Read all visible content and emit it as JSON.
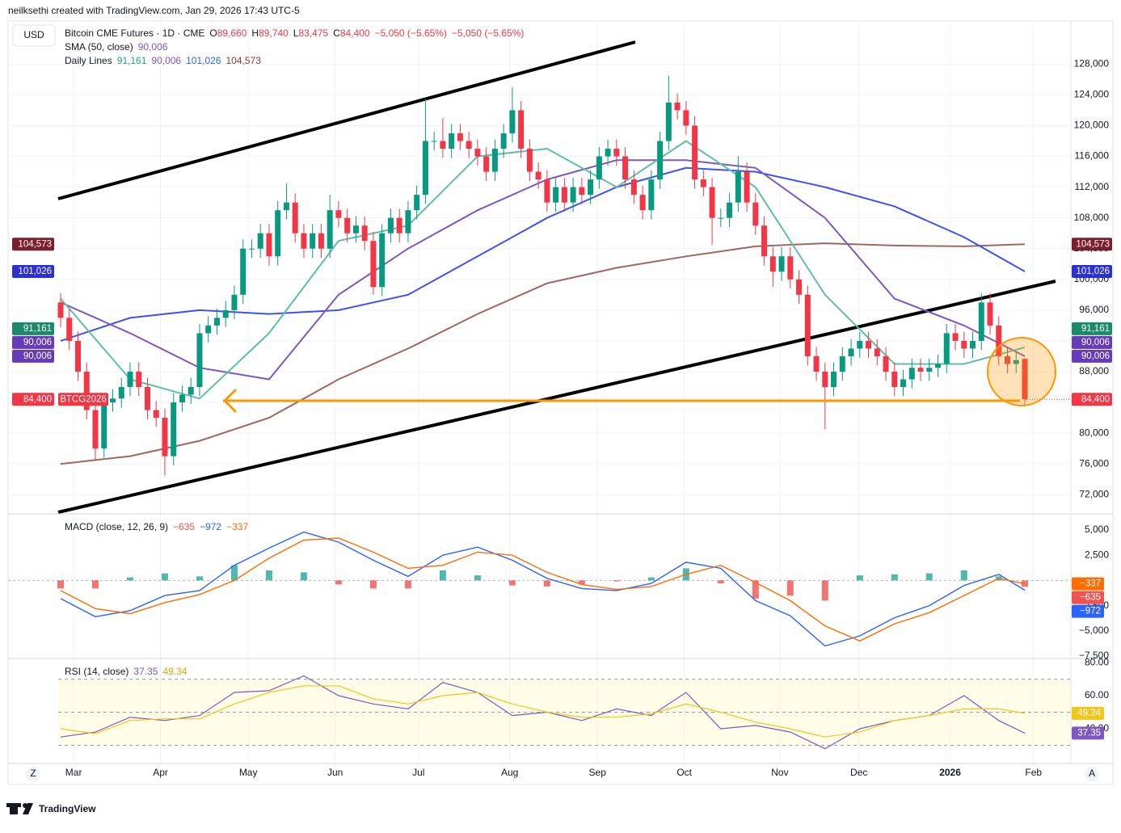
{
  "header": {
    "credit": "neilksethi created with TradingView.com, Jan 29, 2026 17:43 UTC-5",
    "brand": "TradingView",
    "scale_left": "Z",
    "scale_right": "A"
  },
  "chart_data": [
    {
      "type": "candlestick",
      "currency": "USD",
      "title": "Bitcoin CME Futures · 1D · CME",
      "quote": [
        {
          "key": "O",
          "value": "89,660"
        },
        {
          "key": "H",
          "value": "89,740"
        },
        {
          "key": "L",
          "value": "83,475"
        },
        {
          "key": "C",
          "value": "84,400"
        }
      ],
      "change": "−5,050 (−5.65%)",
      "indicators": [
        {
          "name": "SMA (50, close)",
          "values": [
            "90,006"
          ],
          "colors": [
            "#7e57c2"
          ]
        },
        {
          "name": "Daily Lines",
          "values": [
            "91,161",
            "90,006",
            "101,026",
            "104,573"
          ],
          "colors": [
            "#22a08a",
            "#7e57c2",
            "#2962ff",
            "#8d3b3b"
          ]
        }
      ],
      "up_color": "#089981",
      "down_color": "#f23645",
      "open": [
        97000,
        95000,
        92000,
        88000,
        83000,
        78000,
        84000,
        84500,
        86000,
        88000,
        86000,
        83000,
        82000,
        77000,
        84000,
        85000,
        86000,
        93000,
        94000,
        95000,
        96000,
        98000,
        104000,
        104000,
        106000,
        103000,
        109000,
        110000,
        106000,
        104000,
        106000,
        104000,
        109000,
        108000,
        106000,
        107000,
        105000,
        99000,
        106000,
        108000,
        106000,
        109000,
        111000,
        118000,
        118000,
        117000,
        119000,
        118000,
        117000,
        116000,
        114000,
        117000,
        119000,
        122000,
        117000,
        114000,
        113000,
        110000,
        112000,
        110000,
        112000,
        111000,
        113000,
        116000,
        117000,
        116000,
        113000,
        111000,
        109000,
        113000,
        118000,
        123000,
        122000,
        120000,
        113000,
        112000,
        108000,
        108000,
        110000,
        114000,
        110000,
        107000,
        103000,
        101000,
        103000,
        100000,
        98000,
        90000,
        88000,
        86000,
        88000,
        90000,
        91000,
        92000,
        91000,
        90000,
        88000,
        86000,
        87000,
        88500,
        88000,
        88500,
        89000,
        93000,
        92000,
        91000,
        92000,
        97000,
        94000,
        90000,
        89000,
        89660
      ],
      "high": [
        98200,
        96200,
        93200,
        89200,
        84200,
        85200,
        85700,
        87200,
        89200,
        89200,
        87200,
        84200,
        83200,
        85200,
        86200,
        87200,
        94200,
        95200,
        96200,
        97200,
        99200,
        105200,
        105200,
        107200,
        107200,
        110200,
        112500,
        111200,
        107200,
        107200,
        107200,
        111000,
        110200,
        109200,
        108200,
        108200,
        106200,
        107200,
        109200,
        109200,
        110200,
        112200,
        123500,
        119200,
        121000,
        120200,
        120200,
        119200,
        118200,
        117200,
        118200,
        120200,
        125000,
        123200,
        118200,
        115200,
        114200,
        113200,
        113200,
        113200,
        113200,
        114200,
        117200,
        118200,
        118200,
        117200,
        114200,
        112200,
        114200,
        119200,
        126500,
        124200,
        123200,
        121200,
        114200,
        113200,
        109200,
        111200,
        116000,
        115200,
        111200,
        108200,
        104200,
        104200,
        104200,
        101200,
        99200,
        91200,
        89200,
        89200,
        91200,
        92200,
        93200,
        93200,
        92200,
        91200,
        89200,
        88200,
        89700,
        89700,
        89700,
        90200,
        94200,
        94200,
        93200,
        93200,
        98200,
        98200,
        95200,
        91200,
        90700,
        89740
      ],
      "low": [
        93800,
        90800,
        86800,
        81800,
        76500,
        76800,
        82800,
        83300,
        84800,
        84800,
        81800,
        80800,
        74500,
        75800,
        82800,
        83800,
        84800,
        91800,
        92800,
        93800,
        94800,
        96800,
        102800,
        102800,
        101800,
        101800,
        107800,
        104800,
        102800,
        102800,
        102800,
        102800,
        106800,
        104800,
        104800,
        103800,
        98000,
        97800,
        104800,
        104800,
        104800,
        107800,
        109800,
        116800,
        115800,
        115800,
        116800,
        115800,
        114800,
        112800,
        112800,
        115800,
        117800,
        115800,
        112800,
        111800,
        108800,
        108800,
        108800,
        108800,
        109800,
        109800,
        111800,
        114800,
        114800,
        111800,
        109800,
        107800,
        107800,
        111800,
        116800,
        120800,
        118800,
        111800,
        110800,
        104500,
        106800,
        106800,
        108800,
        108800,
        105800,
        101800,
        99000,
        99800,
        98800,
        96800,
        88800,
        86800,
        80500,
        84800,
        86800,
        88800,
        89800,
        89800,
        88800,
        86800,
        84800,
        84800,
        85800,
        86800,
        86800,
        87300,
        87800,
        90800,
        89800,
        89800,
        90800,
        92800,
        88800,
        87800,
        87800,
        83475
      ],
      "close": [
        95000,
        92000,
        88000,
        83000,
        78000,
        84000,
        84500,
        86000,
        88000,
        86000,
        83000,
        82000,
        77000,
        84000,
        85000,
        86000,
        93000,
        94000,
        95000,
        96000,
        98000,
        104000,
        104000,
        106000,
        103000,
        109000,
        110000,
        106000,
        104000,
        106000,
        104000,
        109000,
        108000,
        106000,
        107000,
        105000,
        99000,
        106000,
        108000,
        106000,
        109000,
        111000,
        118000,
        118000,
        117000,
        119000,
        118000,
        117000,
        116000,
        114000,
        117000,
        119000,
        122000,
        117000,
        114000,
        113000,
        110000,
        112000,
        110000,
        112000,
        111000,
        113000,
        116000,
        117000,
        116000,
        113000,
        111000,
        109000,
        113000,
        118000,
        123000,
        122000,
        120000,
        113000,
        112000,
        108000,
        108000,
        110000,
        114000,
        110000,
        107000,
        103000,
        101000,
        103000,
        100000,
        98000,
        90000,
        88000,
        86000,
        88000,
        90000,
        91000,
        92000,
        91000,
        90000,
        88000,
        86000,
        87000,
        88500,
        88000,
        88500,
        89000,
        93000,
        92000,
        91000,
        92000,
        97000,
        94000,
        90000,
        89000,
        89500,
        84400
      ],
      "line_x": [
        0,
        8,
        16,
        24,
        32,
        40,
        48,
        56,
        64,
        72,
        80,
        88,
        96,
        104,
        111
      ],
      "series": [
        {
          "color": "#a1665e",
          "values": [
            76000,
            77000,
            79000,
            82000,
            87000,
            91000,
            95500,
            99500,
            101500,
            103000,
            104300,
            104700,
            104400,
            104300,
            104573
          ]
        },
        {
          "color": "#3f51f5",
          "values": [
            92000,
            95000,
            96000,
            95500,
            96000,
            98000,
            103000,
            108000,
            112000,
            114500,
            114000,
            112000,
            109500,
            105500,
            101026
          ]
        },
        {
          "color": "#7e57c2",
          "values": [
            97000,
            93000,
            88500,
            87000,
            98000,
            104000,
            109000,
            113000,
            115500,
            115500,
            114500,
            108000,
            97500,
            94000,
            90006
          ]
        },
        {
          "color": "#5dbfa8",
          "values": [
            97500,
            87000,
            84500,
            93000,
            105000,
            107000,
            116000,
            117000,
            112000,
            118000,
            112000,
            98000,
            89000,
            89000,
            91161
          ]
        }
      ],
      "price_badges": [
        {
          "value": 84400,
          "label": "84,400",
          "color": "#f23645",
          "tag": "BTCG2026"
        },
        {
          "value": 90006,
          "label": "90,006",
          "color": "#673ab7"
        },
        {
          "value": 90006,
          "label": "90,006",
          "color": "#673ab7"
        },
        {
          "value": 91161,
          "label": "91,161",
          "color": "#1b8a6b"
        },
        {
          "value": 101026,
          "label": "101,026",
          "color": "#2a2fd6"
        },
        {
          "value": 104573,
          "label": "104,573",
          "color": "#7a1f2b"
        }
      ],
      "ylim": [
        69500,
        133400
      ],
      "yticks": [
        {
          "value": 72000,
          "label": "72,000"
        },
        {
          "value": 76000,
          "label": "76,000"
        },
        {
          "value": 80000,
          "label": "80,000"
        },
        {
          "value": 84000,
          "label": "84,000"
        },
        {
          "value": 88000,
          "label": "88,000"
        },
        {
          "value": 92000,
          "label": "92,000"
        },
        {
          "value": 96000,
          "label": "96,000"
        },
        {
          "value": 100000,
          "label": "100,000"
        },
        {
          "value": 104000,
          "label": "104,000"
        },
        {
          "value": 108000,
          "label": "108,000"
        },
        {
          "value": 112000,
          "label": "112,000"
        },
        {
          "value": 116000,
          "label": "116,000"
        },
        {
          "value": 120000,
          "label": "120,000"
        },
        {
          "value": 124000,
          "label": "124,000"
        },
        {
          "value": 128000,
          "label": "128,000"
        }
      ],
      "xticks": [
        {
          "value": 1.5,
          "label": "Mar"
        },
        {
          "value": 11.5,
          "label": "Apr"
        },
        {
          "value": 21.6,
          "label": "May"
        },
        {
          "value": 31.6,
          "label": "Jun"
        },
        {
          "value": 41.2,
          "label": "Jul"
        },
        {
          "value": 51.7,
          "label": "Aug"
        },
        {
          "value": 61.8,
          "label": "Sep"
        },
        {
          "value": 71.8,
          "label": "Oct"
        },
        {
          "value": 82.8,
          "label": "Nov"
        },
        {
          "value": 91.9,
          "label": "Dec"
        },
        {
          "value": 102.4,
          "label": "2026"
        },
        {
          "value": 112,
          "label": "Feb"
        }
      ],
      "bold_tick": 10,
      "grid": true
    },
    {
      "type": "macd",
      "title": "MACD (close, 12, 26, 9)",
      "x": [
        0,
        4,
        8,
        12,
        16,
        20,
        24,
        28,
        32,
        36,
        40,
        44,
        48,
        52,
        56,
        60,
        64,
        68,
        72,
        76,
        80,
        84,
        88,
        92,
        96,
        100,
        104,
        108,
        111
      ],
      "histogram": {
        "values": [
          -800,
          -800,
          300,
          700,
          400,
          1500,
          1000,
          800,
          -400,
          -800,
          -800,
          1000,
          500,
          -500,
          -600,
          -400,
          -100,
          300,
          1200,
          -300,
          -1800,
          -1500,
          -2000,
          500,
          600,
          700,
          1000,
          400,
          -635
        ],
        "up_color": "#26a69a",
        "down_color": "#ef5350",
        "label": "−635"
      },
      "series": [
        {
          "color": "#2962ff",
          "values": [
            -1800,
            -3600,
            -3000,
            -1500,
            -1000,
            1500,
            3200,
            4800,
            3800,
            2000,
            400,
            2500,
            3300,
            2000,
            200,
            -800,
            -1000,
            -300,
            1800,
            1200,
            -2000,
            -3500,
            -6500,
            -5500,
            -3700,
            -2500,
            -500,
            600,
            -972
          ],
          "label": "−972"
        },
        {
          "color": "#ff6d00",
          "values": [
            -1000,
            -2800,
            -3300,
            -2200,
            -1400,
            0,
            2200,
            4000,
            4200,
            2800,
            1200,
            1500,
            2800,
            2500,
            800,
            -400,
            -900,
            -600,
            600,
            1500,
            -200,
            -2000,
            -4500,
            -6000,
            -4300,
            -3200,
            -1500,
            200,
            -337
          ],
          "label": "−337"
        }
      ],
      "ylim": [
        -7740,
        6520
      ],
      "yticks": [
        {
          "value": 5000,
          "label": "5,000"
        },
        {
          "value": 2500,
          "label": "2,500"
        },
        {
          "value": -2500,
          "label": "−2,500"
        },
        {
          "value": -5000,
          "label": "−5,000"
        },
        {
          "value": -7500,
          "label": "−7,500"
        }
      ]
    },
    {
      "type": "rsi",
      "title": "RSI (14, close)",
      "x": [
        0,
        4,
        8,
        12,
        16,
        20,
        24,
        28,
        32,
        36,
        40,
        44,
        48,
        52,
        56,
        60,
        64,
        68,
        72,
        76,
        80,
        84,
        88,
        92,
        96,
        100,
        104,
        108,
        111
      ],
      "series": [
        {
          "color": "#7e57c2",
          "values": [
            35,
            38,
            47,
            45,
            48,
            62,
            63,
            72,
            60,
            55,
            52,
            68,
            62,
            48,
            50,
            45,
            52,
            48,
            62,
            40,
            42,
            38,
            28,
            40,
            45,
            48,
            60,
            45,
            37.35
          ],
          "label": "37.35"
        },
        {
          "color": "#f5c518",
          "values": [
            40,
            37,
            45,
            46,
            46,
            55,
            62,
            66,
            66,
            58,
            55,
            60,
            62,
            55,
            50,
            47,
            47,
            49,
            55,
            50,
            44,
            40,
            35,
            38,
            45,
            48,
            52,
            52,
            49.34
          ],
          "label": "49.34"
        }
      ],
      "bands": [
        70,
        50,
        30
      ],
      "ylim": [
        19,
        82
      ],
      "yticks": [
        {
          "value": 80,
          "label": "80.00"
        },
        {
          "value": 60,
          "label": "60.00"
        },
        {
          "value": 40,
          "label": "40.00"
        }
      ]
    }
  ]
}
